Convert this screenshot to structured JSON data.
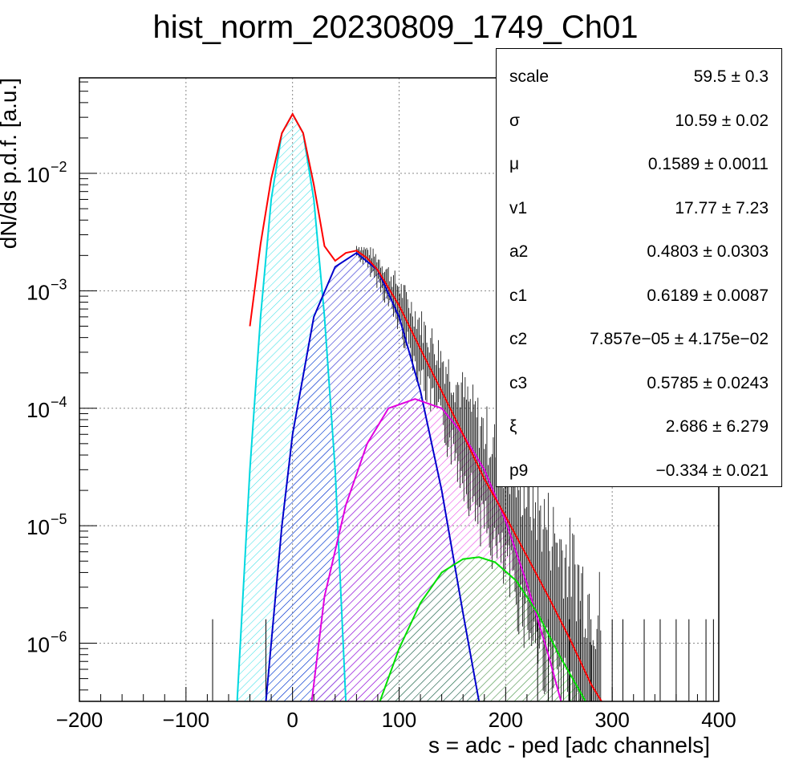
{
  "chart_data": {
    "type": "line",
    "title": "hist_norm_20230809_1749_Ch01",
    "xlabel": "s = adc - ped [adc channels]",
    "ylabel": "dN/ds p.d.f. [a.u.]",
    "xlim": [
      -200,
      400
    ],
    "ylim": [
      3.2e-07,
      0.065
    ],
    "yscale": "log",
    "grid": true,
    "x_ticks": [
      "−200",
      "−100",
      "0",
      "100",
      "200",
      "300",
      "400"
    ],
    "y_ticks": [
      {
        "base": "10",
        "exp": "−2",
        "value": 0.01
      },
      {
        "base": "10",
        "exp": "−3",
        "value": 0.001
      },
      {
        "base": "10",
        "exp": "−4",
        "value": 0.0001
      },
      {
        "base": "10",
        "exp": "−5",
        "value": 1e-05
      },
      {
        "base": "10",
        "exp": "−6",
        "value": 1e-06
      }
    ],
    "series": [
      {
        "color": "#ff0000",
        "style": "total fit",
        "x": [
          -40,
          -30,
          -20,
          -10,
          0,
          10,
          20,
          30,
          40,
          50,
          60,
          70,
          80,
          100,
          120,
          140,
          160,
          180,
          200,
          220,
          240,
          260,
          280,
          290
        ],
        "y": [
          0.0005,
          0.0025,
          0.009,
          0.022,
          0.032,
          0.022,
          0.008,
          0.0024,
          0.0018,
          0.0021,
          0.0022,
          0.0019,
          0.0015,
          0.00075,
          0.00032,
          0.00014,
          6e-05,
          2.5e-05,
          1.2e-05,
          5.5e-06,
          2.5e-06,
          1.1e-06,
          4.5e-07,
          3.2e-07
        ]
      },
      {
        "color": "#00d8e0",
        "style": "pedestal peak",
        "x": [
          -52,
          -40,
          -30,
          -20,
          -10,
          0,
          10,
          20,
          30,
          40,
          50
        ],
        "y": [
          3.2e-07,
          3e-05,
          0.0006,
          0.006,
          0.022,
          0.032,
          0.022,
          0.006,
          0.0006,
          3e-05,
          3.2e-07
        ]
      },
      {
        "color": "#0000cc",
        "style": "1 p.e. peak",
        "x": [
          -25,
          -10,
          0,
          20,
          40,
          60,
          80,
          100,
          120,
          140,
          160,
          175
        ],
        "y": [
          3.2e-07,
          1e-05,
          6e-05,
          0.0006,
          0.0016,
          0.0021,
          0.0015,
          0.0006,
          0.00014,
          2e-05,
          1.8e-06,
          3.2e-07
        ]
      },
      {
        "color": "#e000e0",
        "style": "2 p.e. peak",
        "x": [
          18,
          30,
          50,
          70,
          90,
          115,
          140,
          160,
          180,
          200,
          220,
          240,
          252
        ],
        "y": [
          3.2e-07,
          2.5e-06,
          1.5e-05,
          5e-05,
          0.0001,
          0.00012,
          0.0001,
          6e-05,
          3e-05,
          1.1e-05,
          3.2e-06,
          8e-07,
          3.2e-07
        ]
      },
      {
        "color": "#00e000",
        "style": "3 p.e. peak",
        "x": [
          82,
          100,
          120,
          140,
          160,
          175,
          190,
          210,
          230,
          250,
          275
        ],
        "y": [
          3.2e-07,
          9e-07,
          2.2e-06,
          4e-06,
          5.2e-06,
          5.4e-06,
          4.9e-06,
          3.4e-06,
          1.8e-06,
          8e-07,
          3.2e-07
        ]
      }
    ]
  },
  "stats": [
    {
      "key": "scale",
      "value": "59.5 ± 0.3"
    },
    {
      "key": "σ",
      "value": "10.59 ± 0.02"
    },
    {
      "key": "μ",
      "value": "0.1589 ± 0.0011"
    },
    {
      "key": "v1",
      "value": "17.77 ± 7.23"
    },
    {
      "key": "a2",
      "value": "0.4803 ± 0.0303"
    },
    {
      "key": "c1",
      "value": "0.6189 ± 0.0087"
    },
    {
      "key": "c2",
      "value": "7.857e−05 ± 4.175e−02"
    },
    {
      "key": "c3",
      "value": "0.5785 ± 0.0243"
    },
    {
      "key": "ξ",
      "value": "2.686 ± 6.279"
    },
    {
      "key": "p9",
      "value": "−0.334 ± 0.021"
    }
  ]
}
